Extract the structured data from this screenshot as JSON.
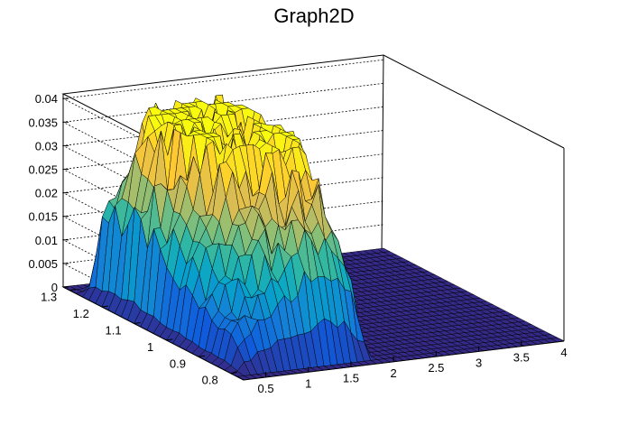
{
  "chart_data": {
    "type": "surface",
    "title": "Graph2D",
    "xlabel": "",
    "ylabel": "",
    "zlabel": "",
    "xlim": [
      0.24,
      4.0
    ],
    "ylim": [
      0.76,
      1.32
    ],
    "zlim": [
      0,
      0.041
    ],
    "x_ticks": [
      "0.5",
      "1",
      "1.5",
      "2",
      "2.5",
      "3",
      "3.5",
      "4"
    ],
    "y_ticks": [
      "0.8",
      "0.9",
      "1",
      "1.1",
      "1.2",
      "1.3"
    ],
    "z_ticks": [
      "0",
      "0.005",
      "0.01",
      "0.015",
      "0.02",
      "0.025",
      "0.03",
      "0.035",
      "0.04"
    ],
    "grid": true,
    "palette": "parula",
    "colors": [
      "#352a87",
      "#0f5cdd",
      "#1481d6",
      "#06a4ca",
      "#2eb7a4",
      "#87bf77",
      "#d1bb59",
      "#fec832",
      "#f9fb0e"
    ],
    "surface_description": "density of points with support x in [0.3, 1.85], y in [0.78, 1.28]; maximum about 0.039 near x=1.15, y=1.2; secondary peaks near x=1.7; zero elsewhere",
    "peaks": [
      {
        "x": 1.15,
        "y": 1.2,
        "z": 0.039
      },
      {
        "x": 1.7,
        "y": 1.25,
        "z": 0.036
      },
      {
        "x": 1.75,
        "y": 1.05,
        "z": 0.033
      },
      {
        "x": 1.45,
        "y": 0.95,
        "z": 0.03
      },
      {
        "x": 0.9,
        "y": 1.05,
        "z": 0.027
      },
      {
        "x": 0.55,
        "y": 1.15,
        "z": 0.02
      }
    ]
  }
}
